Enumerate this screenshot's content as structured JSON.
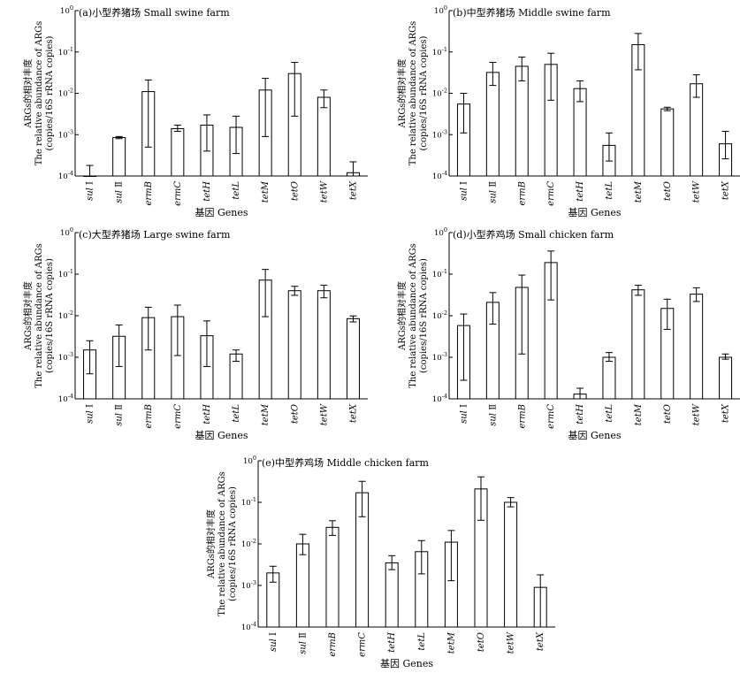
{
  "chart_data": [
    {
      "type": "bar",
      "title": "(a)小型养猪场 Small swine farm",
      "xlabel": "基因 Genes",
      "ylabel": [
        "ARGs的相对丰度",
        "The relative abundance of ARGs",
        "(copies/16S rRNA copies)"
      ],
      "yscale": "log",
      "ylim": [
        0.0001,
        1
      ],
      "yticks": [
        {
          "base": "10",
          "exp": "0"
        },
        {
          "base": "10",
          "exp": "-1"
        },
        {
          "base": "10",
          "exp": "-2"
        },
        {
          "base": "10",
          "exp": "-3"
        },
        {
          "base": "10",
          "exp": "-4"
        }
      ],
      "categories": [
        {
          "italic": "sul",
          "rest": " Ⅰ"
        },
        {
          "italic": "sul",
          "rest": " Ⅱ"
        },
        {
          "italic": "ermB",
          "rest": ""
        },
        {
          "italic": "ermC",
          "rest": ""
        },
        {
          "italic": "tetH",
          "rest": ""
        },
        {
          "italic": "tetL",
          "rest": ""
        },
        {
          "italic": "tetM",
          "rest": ""
        },
        {
          "italic": "tetO",
          "rest": ""
        },
        {
          "italic": "tetW",
          "rest": ""
        },
        {
          "italic": "tetX",
          "rest": ""
        }
      ],
      "values": [
        0.0001,
        0.00085,
        0.011,
        0.0014,
        0.0017,
        0.0015,
        0.012,
        0.03,
        0.008,
        0.00012
      ],
      "err_low": [
        0.0001,
        0.0008,
        0.0005,
        0.0012,
        0.0004,
        0.00035,
        0.0009,
        0.0028,
        0.0045,
        0.0001
      ],
      "err_high": [
        0.00018,
        0.0009,
        0.021,
        0.0017,
        0.003,
        0.0028,
        0.023,
        0.056,
        0.012,
        0.00022
      ]
    },
    {
      "type": "bar",
      "title": "(b)中型养猪场 Middle swine farm",
      "xlabel": "基因 Genes",
      "ylabel": [
        "ARGs的相对丰度",
        "The relative abundance of ARGs",
        "(copies/16S rRNA copies)"
      ],
      "yscale": "log",
      "ylim": [
        0.0001,
        1
      ],
      "yticks": [
        {
          "base": "10",
          "exp": "0"
        },
        {
          "base": "10",
          "exp": "-1"
        },
        {
          "base": "10",
          "exp": "-2"
        },
        {
          "base": "10",
          "exp": "-3"
        },
        {
          "base": "10",
          "exp": "-4"
        }
      ],
      "categories": [
        {
          "italic": "sul",
          "rest": " Ⅰ"
        },
        {
          "italic": "sul",
          "rest": " Ⅱ"
        },
        {
          "italic": "ermB",
          "rest": ""
        },
        {
          "italic": "ermC",
          "rest": ""
        },
        {
          "italic": "tetH",
          "rest": ""
        },
        {
          "italic": "tetL",
          "rest": ""
        },
        {
          "italic": "tetM",
          "rest": ""
        },
        {
          "italic": "tetO",
          "rest": ""
        },
        {
          "italic": "tetW",
          "rest": ""
        },
        {
          "italic": "tetX",
          "rest": ""
        }
      ],
      "values": [
        0.0055,
        0.032,
        0.045,
        0.05,
        0.013,
        0.00055,
        0.15,
        0.0042,
        0.017,
        0.0006
      ],
      "err_low": [
        0.0011,
        0.0155,
        0.02,
        0.0068,
        0.0063,
        0.00023,
        0.037,
        0.0038,
        0.008,
        0.00026
      ],
      "err_high": [
        0.01,
        0.056,
        0.075,
        0.093,
        0.02,
        0.0011,
        0.28,
        0.0046,
        0.028,
        0.0012
      ]
    },
    {
      "type": "bar",
      "title": "(c)大型养猪场 Large swine farm",
      "xlabel": "基因 Genes",
      "ylabel": [
        "ARGs的相对丰度",
        "The relative abundance of ARGs",
        "(copies/16S rRNA copies)"
      ],
      "yscale": "log",
      "ylim": [
        0.0001,
        1
      ],
      "yticks": [
        {
          "base": "10",
          "exp": "0"
        },
        {
          "base": "10",
          "exp": "-1"
        },
        {
          "base": "10",
          "exp": "-2"
        },
        {
          "base": "10",
          "exp": "-3"
        },
        {
          "base": "10",
          "exp": "-4"
        }
      ],
      "categories": [
        {
          "italic": "sul",
          "rest": " Ⅰ"
        },
        {
          "italic": "sul",
          "rest": " Ⅱ"
        },
        {
          "italic": "ermB",
          "rest": ""
        },
        {
          "italic": "ermC",
          "rest": ""
        },
        {
          "italic": "tetH",
          "rest": ""
        },
        {
          "italic": "tetL",
          "rest": ""
        },
        {
          "italic": "tetM",
          "rest": ""
        },
        {
          "italic": "tetO",
          "rest": ""
        },
        {
          "italic": "tetW",
          "rest": ""
        },
        {
          "italic": "tetX",
          "rest": ""
        }
      ],
      "values": [
        0.0015,
        0.0032,
        0.009,
        0.0095,
        0.0033,
        0.0012,
        0.072,
        0.04,
        0.04,
        0.0085
      ],
      "err_low": [
        0.0004,
        0.0006,
        0.0015,
        0.0011,
        0.0006,
        0.0008,
        0.0095,
        0.031,
        0.027,
        0.0071
      ],
      "err_high": [
        0.0025,
        0.006,
        0.016,
        0.018,
        0.0075,
        0.0015,
        0.13,
        0.051,
        0.054,
        0.0099
      ]
    },
    {
      "type": "bar",
      "title": "(d)小型养鸡场 Small chicken farm",
      "xlabel": "基因 Genes",
      "ylabel": [
        "ARGs的相对丰度",
        "The relative abundance of ARGs",
        "(copies/16S rRNA copies)"
      ],
      "yscale": "log",
      "ylim": [
        0.0001,
        1
      ],
      "yticks": [
        {
          "base": "10",
          "exp": "0"
        },
        {
          "base": "10",
          "exp": "-1"
        },
        {
          "base": "10",
          "exp": "-2"
        },
        {
          "base": "10",
          "exp": "-3"
        },
        {
          "base": "10",
          "exp": "-4"
        }
      ],
      "categories": [
        {
          "italic": "sul",
          "rest": " Ⅰ"
        },
        {
          "italic": "sul",
          "rest": " Ⅱ"
        },
        {
          "italic": "ermB",
          "rest": ""
        },
        {
          "italic": "ermC",
          "rest": ""
        },
        {
          "italic": "tetH",
          "rest": ""
        },
        {
          "italic": "tetL",
          "rest": ""
        },
        {
          "italic": "tetM",
          "rest": ""
        },
        {
          "italic": "tetO",
          "rest": ""
        },
        {
          "italic": "tetW",
          "rest": ""
        },
        {
          "italic": "tetX",
          "rest": ""
        }
      ],
      "values": [
        0.0058,
        0.021,
        0.048,
        0.19,
        0.00013,
        0.001,
        0.042,
        0.015,
        0.033,
        0.001
      ],
      "err_low": [
        0.00028,
        0.0063,
        0.0012,
        0.024,
        0.0001,
        0.0008,
        0.031,
        0.0047,
        0.022,
        0.0009
      ],
      "err_high": [
        0.011,
        0.036,
        0.095,
        0.36,
        0.00018,
        0.0013,
        0.054,
        0.025,
        0.047,
        0.0012
      ]
    },
    {
      "type": "bar",
      "title": "(e)中型养鸡场 Middle chicken farm",
      "xlabel": "基因 Genes",
      "ylabel": [
        "ARGs的相对丰度",
        "The relative abundance of ARGs",
        "(copies/16S rRNA copies)"
      ],
      "yscale": "log",
      "ylim": [
        0.0001,
        1
      ],
      "yticks": [
        {
          "base": "10",
          "exp": "0"
        },
        {
          "base": "10",
          "exp": "-1"
        },
        {
          "base": "10",
          "exp": "-2"
        },
        {
          "base": "10",
          "exp": "-3"
        },
        {
          "base": "10",
          "exp": "-4"
        }
      ],
      "categories": [
        {
          "italic": "sul",
          "rest": " Ⅰ"
        },
        {
          "italic": "sul",
          "rest": " Ⅱ"
        },
        {
          "italic": "ermB",
          "rest": ""
        },
        {
          "italic": "ermC",
          "rest": ""
        },
        {
          "italic": "tetH",
          "rest": ""
        },
        {
          "italic": "tetL",
          "rest": ""
        },
        {
          "italic": "tetM",
          "rest": ""
        },
        {
          "italic": "tetO",
          "rest": ""
        },
        {
          "italic": "tetW",
          "rest": ""
        },
        {
          "italic": "tetX",
          "rest": ""
        }
      ],
      "values": [
        0.002,
        0.01,
        0.025,
        0.17,
        0.0035,
        0.0065,
        0.011,
        0.21,
        0.1,
        0.0009
      ],
      "err_low": [
        0.0012,
        0.0055,
        0.016,
        0.045,
        0.0024,
        0.0019,
        0.0013,
        0.037,
        0.078,
        0.0001
      ],
      "err_high": [
        0.0029,
        0.017,
        0.036,
        0.32,
        0.0052,
        0.012,
        0.021,
        0.41,
        0.13,
        0.0018
      ]
    }
  ]
}
